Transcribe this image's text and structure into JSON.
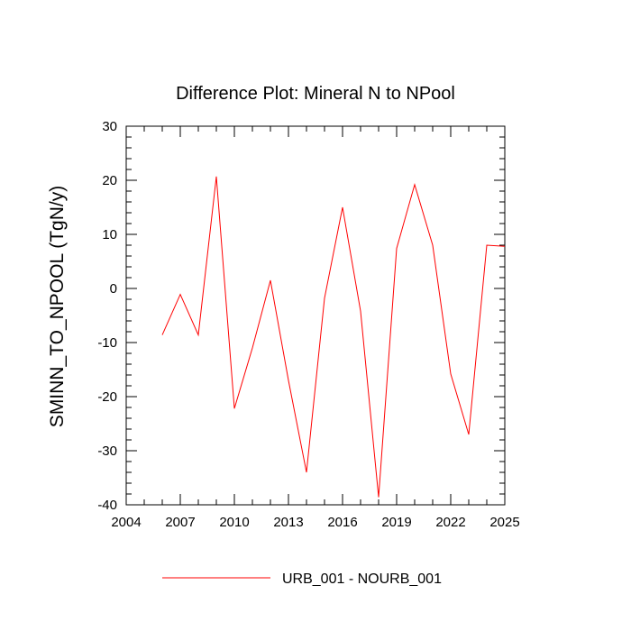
{
  "chart_data": {
    "type": "line",
    "title": "Difference Plot: Mineral N to NPool",
    "ylabel": "SMINN_TO_NPOOL  (TgN/y)",
    "xlabel": "",
    "xlim": [
      2004,
      2025
    ],
    "ylim": [
      -40,
      30
    ],
    "xticks": [
      2004,
      2007,
      2010,
      2013,
      2016,
      2019,
      2022,
      2025
    ],
    "yticks": [
      -40,
      -30,
      -20,
      -10,
      0,
      10,
      20,
      30
    ],
    "grid": false,
    "legend_position": "bottom-center",
    "series": [
      {
        "name": "URB_001 - NOURB_001",
        "color": "#ff0000",
        "x": [
          2006,
          2007,
          2008,
          2009,
          2010,
          2011,
          2012,
          2013,
          2014,
          2015,
          2016,
          2017,
          2018,
          2019,
          2020,
          2021,
          2022,
          2023,
          2024,
          2025
        ],
        "y": [
          -8.6,
          -1.1,
          -8.6,
          20.7,
          -22.2,
          -11.0,
          1.5,
          -17.0,
          -34.0,
          -1.8,
          15.0,
          -4.2,
          -38.6,
          7.4,
          19.2,
          8.0,
          -15.8,
          -27.0,
          8.0,
          7.8
        ]
      }
    ]
  }
}
